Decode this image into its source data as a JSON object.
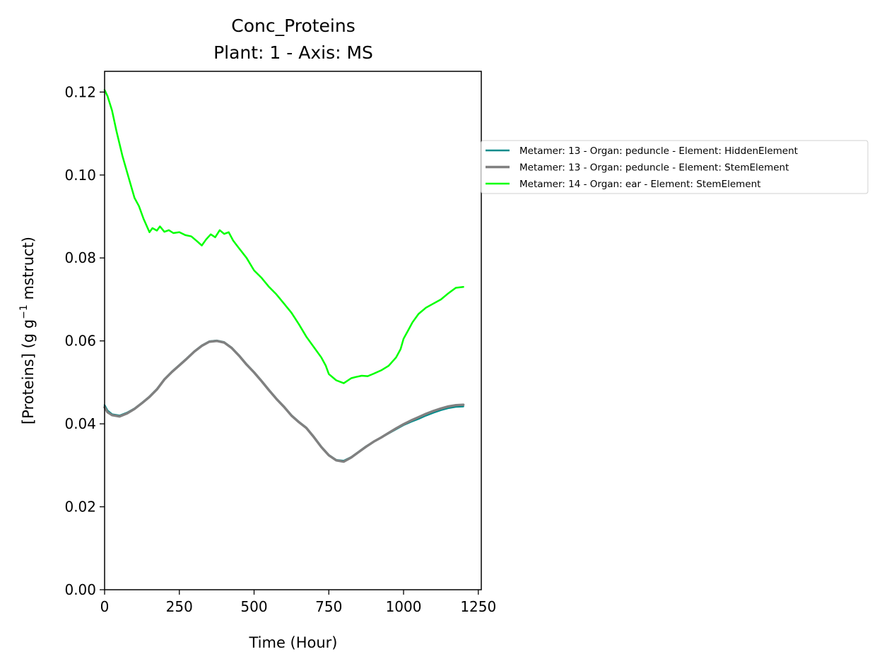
{
  "chart_data": {
    "type": "line",
    "title": "Conc_Proteins",
    "subtitle": "Plant: 1 - Axis: MS",
    "xlabel": "Time (Hour)",
    "ylabel_main": "[Proteins] (g g",
    "ylabel_sup": "−1",
    "ylabel_tail": " mstruct)",
    "xlim": [
      0,
      1260
    ],
    "ylim": [
      0,
      0.125
    ],
    "xticks": [
      0,
      250,
      500,
      750,
      1000,
      1250
    ],
    "xtick_labels": [
      "0",
      "250",
      "500",
      "750",
      "1000",
      "1250"
    ],
    "yticks": [
      0,
      0.02,
      0.04,
      0.06,
      0.08,
      0.1,
      0.12
    ],
    "ytick_labels": [
      "0.00",
      "0.02",
      "0.04",
      "0.06",
      "0.08",
      "0.10",
      "0.12"
    ],
    "grid": false,
    "legend_position": "outside-right-top",
    "series": [
      {
        "name": "Metamer: 13 - Organ: peduncle - Element: HiddenElement",
        "color": "#008b8b",
        "width": 2.5,
        "x": [
          0,
          10,
          25,
          50,
          75,
          100,
          125,
          150,
          175,
          200,
          225,
          250,
          275,
          300,
          325,
          350,
          375,
          400,
          425,
          450,
          475,
          500,
          525,
          550,
          575,
          600,
          625,
          650,
          675,
          700,
          725,
          750,
          775,
          800,
          825,
          850,
          875,
          900,
          925,
          950,
          975,
          1000,
          1025,
          1050,
          1075,
          1100,
          1125,
          1150,
          1175,
          1200
        ],
        "y": [
          0.0445,
          0.0432,
          0.0423,
          0.042,
          0.0427,
          0.0437,
          0.0451,
          0.0466,
          0.0484,
          0.0508,
          0.0526,
          0.0542,
          0.0558,
          0.0575,
          0.0589,
          0.0599,
          0.0601,
          0.0597,
          0.0584,
          0.0565,
          0.0544,
          0.0525,
          0.0504,
          0.0482,
          0.0461,
          0.0442,
          0.0421,
          0.0405,
          0.0391,
          0.0369,
          0.0345,
          0.0325,
          0.0313,
          0.0311,
          0.032,
          0.0333,
          0.0346,
          0.0357,
          0.0367,
          0.0377,
          0.0387,
          0.0397,
          0.0405,
          0.0412,
          0.042,
          0.0427,
          0.0433,
          0.0438,
          0.0441,
          0.0442
        ]
      },
      {
        "name": "Metamer: 13 - Organ: peduncle - Element: StemElement",
        "color": "#808080",
        "width": 3.5,
        "x": [
          0,
          10,
          25,
          50,
          75,
          100,
          125,
          150,
          175,
          200,
          225,
          250,
          275,
          300,
          325,
          350,
          375,
          400,
          425,
          450,
          475,
          500,
          525,
          550,
          575,
          600,
          625,
          650,
          675,
          700,
          725,
          750,
          775,
          800,
          825,
          850,
          875,
          900,
          925,
          950,
          975,
          1000,
          1025,
          1050,
          1075,
          1100,
          1125,
          1150,
          1175,
          1200
        ],
        "y": [
          0.044,
          0.0428,
          0.0421,
          0.0418,
          0.0425,
          0.0436,
          0.045,
          0.0465,
          0.0483,
          0.0507,
          0.0525,
          0.0541,
          0.0557,
          0.0574,
          0.0588,
          0.0598,
          0.06,
          0.0596,
          0.0583,
          0.0564,
          0.0543,
          0.0524,
          0.0503,
          0.0481,
          0.046,
          0.0441,
          0.042,
          0.0404,
          0.039,
          0.0368,
          0.0344,
          0.0324,
          0.0312,
          0.0309,
          0.0319,
          0.0332,
          0.0345,
          0.0357,
          0.0367,
          0.0378,
          0.0389,
          0.0399,
          0.0408,
          0.0416,
          0.0424,
          0.0431,
          0.0437,
          0.0442,
          0.0445,
          0.0446
        ]
      },
      {
        "name": "Metamer: 14 - Organ: ear - Element: StemElement",
        "color": "#00ff00",
        "width": 2.5,
        "x": [
          0,
          10,
          25,
          40,
          60,
          80,
          100,
          115,
          130,
          150,
          160,
          175,
          185,
          200,
          215,
          230,
          250,
          270,
          290,
          310,
          325,
          340,
          355,
          370,
          385,
          400,
          415,
          430,
          450,
          475,
          500,
          525,
          550,
          575,
          600,
          625,
          650,
          675,
          700,
          725,
          740,
          750,
          775,
          800,
          825,
          840,
          860,
          880,
          900,
          925,
          950,
          975,
          990,
          1000,
          1015,
          1030,
          1050,
          1075,
          1100,
          1125,
          1150,
          1175,
          1200
        ],
        "y": [
          0.1205,
          0.119,
          0.1155,
          0.1105,
          0.1045,
          0.0995,
          0.0945,
          0.0925,
          0.0895,
          0.0862,
          0.0872,
          0.0866,
          0.0876,
          0.0863,
          0.0867,
          0.086,
          0.0862,
          0.0855,
          0.0852,
          0.084,
          0.083,
          0.0845,
          0.0857,
          0.085,
          0.0867,
          0.0858,
          0.0862,
          0.0842,
          0.0823,
          0.08,
          0.077,
          0.0752,
          0.073,
          0.0712,
          0.069,
          0.0668,
          0.064,
          0.061,
          0.0585,
          0.056,
          0.054,
          0.052,
          0.0505,
          0.0498,
          0.051,
          0.0513,
          0.0516,
          0.0515,
          0.0521,
          0.0529,
          0.054,
          0.056,
          0.058,
          0.0605,
          0.0625,
          0.0645,
          0.0665,
          0.068,
          0.069,
          0.07,
          0.0715,
          0.0728,
          0.073
        ]
      }
    ]
  }
}
